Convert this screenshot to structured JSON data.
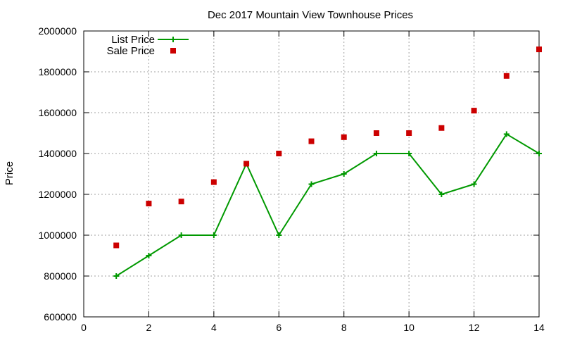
{
  "chart_data": {
    "type": "line",
    "title": "Dec 2017 Mountain View Townhouse Prices",
    "xlabel": "",
    "ylabel": "Price",
    "xlim": [
      0,
      14
    ],
    "ylim": [
      600000,
      2000000
    ],
    "x_ticks": [
      0,
      2,
      4,
      6,
      8,
      10,
      12,
      14
    ],
    "y_ticks": [
      600000,
      800000,
      1000000,
      1200000,
      1400000,
      1600000,
      1800000,
      2000000
    ],
    "x_tick_labels": [
      "0",
      "2",
      "4",
      "6",
      "8",
      "10",
      "12",
      "14"
    ],
    "y_tick_labels": [
      "600000",
      "800000",
      "1000000",
      "1200000",
      "1400000",
      "1600000",
      "1800000",
      "2000000"
    ],
    "grid": true,
    "legend_position": "top-left",
    "series": [
      {
        "name": "List Price",
        "style": "line-plus",
        "color": "#009900",
        "x": [
          1,
          2,
          3,
          4,
          5,
          6,
          7,
          8,
          9,
          10,
          11,
          12,
          13,
          14
        ],
        "y": [
          800000,
          900000,
          1000000,
          1000000,
          1350000,
          1000000,
          1250000,
          1300000,
          1400000,
          1400000,
          1200000,
          1250000,
          1495000,
          1400000
        ]
      },
      {
        "name": "Sale Price",
        "style": "square",
        "color": "#cc0000",
        "x": [
          1,
          2,
          3,
          4,
          5,
          6,
          7,
          8,
          9,
          10,
          11,
          12,
          13,
          14
        ],
        "y": [
          950000,
          1155000,
          1165000,
          1260000,
          1350000,
          1400000,
          1460000,
          1480000,
          1500000,
          1500000,
          1525000,
          1610000,
          1780000,
          1910000
        ]
      }
    ]
  }
}
